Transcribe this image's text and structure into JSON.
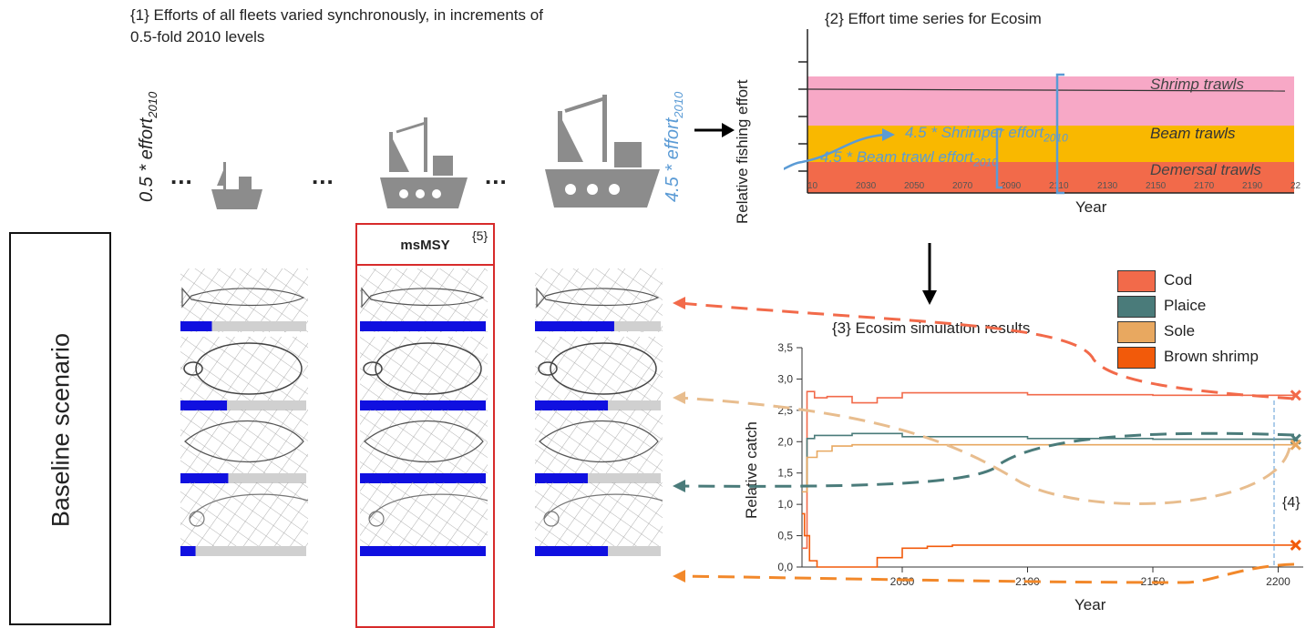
{
  "panel1": {
    "title_line1": "{1} Efforts of all fleets varied synchronously, in increments of",
    "title_line2": "0.5-fold 2010 levels",
    "left_effort_prefix": "0.5 * effort",
    "left_effort_sub": "2010",
    "right_effort_prefix": "4.5 * effort",
    "right_effort_sub": "2010",
    "ellipsis": "..."
  },
  "side_label": "Baseline scenario",
  "msmsy": {
    "label": "msMSY",
    "note": "{5}"
  },
  "panel2": {
    "title": "{2} Effort time series for Ecosim",
    "ylabel": "Relative fishing effort",
    "xlabel": "Year",
    "x_ticks": [
      "10",
      "2030",
      "2050",
      "2070",
      "2090",
      "2110",
      "2130",
      "2150",
      "2170",
      "2190",
      "22"
    ],
    "bands": [
      {
        "label": "Shrimp trawls",
        "color": "#f7a8c6"
      },
      {
        "label": "Beam trawls",
        "color": "#f9b800"
      },
      {
        "label": "Demersal trawls",
        "color": "#f26a4a"
      }
    ],
    "ann_shrimper": "4.5 * Shrimper effort",
    "ann_shrimper_sub": "2010",
    "ann_beam": "4.5 * Beam trawl effort",
    "ann_beam_sub": "2010"
  },
  "panel3": {
    "title": "{3} Ecosim simulation results",
    "note4": "{4}",
    "legend": [
      {
        "label": "Cod",
        "color": "#f26a4a"
      },
      {
        "label": "Plaice",
        "color": "#4a7b7a"
      },
      {
        "label": "Sole",
        "color": "#e8a860"
      },
      {
        "label": "Brown shrimp",
        "color": "#f25a0a"
      }
    ]
  },
  "fish_bars": {
    "color_fill": "#1010e0",
    "color_track": "#d0d0d0",
    "columns": [
      [
        0.25,
        0.37,
        0.38,
        0.12
      ],
      [
        1.0,
        1.0,
        1.0,
        1.0
      ],
      [
        0.63,
        0.58,
        0.42,
        0.58
      ]
    ]
  },
  "chart_data": {
    "type": "line",
    "title": "{3} Ecosim simulation results",
    "xlabel": "Year",
    "ylabel": "Relative catch",
    "xlim": [
      2010,
      2210
    ],
    "ylim": [
      0,
      3.5
    ],
    "x_ticks": [
      2050,
      2100,
      2150,
      2200
    ],
    "y_ticks": [
      "0,0",
      "0,5",
      "1,0",
      "1,5",
      "2,0",
      "2,5",
      "3,0",
      "3,5"
    ],
    "series": [
      {
        "name": "Cod",
        "color": "#f26a4a",
        "x": [
          2010,
          2012,
          2015,
          2020,
          2030,
          2040,
          2050,
          2100,
          2150,
          2207
        ],
        "y": [
          0.3,
          2.8,
          2.7,
          2.72,
          2.62,
          2.7,
          2.78,
          2.75,
          2.74,
          2.74
        ]
      },
      {
        "name": "Plaice",
        "color": "#4a7b7a",
        "x": [
          2010,
          2012,
          2015,
          2020,
          2030,
          2050,
          2100,
          2150,
          2207
        ],
        "y": [
          1.3,
          2.05,
          2.1,
          2.1,
          2.13,
          2.08,
          2.05,
          2.04,
          2.04
        ]
      },
      {
        "name": "Sole",
        "color": "#e8a860",
        "x": [
          2010,
          2012,
          2016,
          2022,
          2030,
          2050,
          2100,
          2150,
          2207
        ],
        "y": [
          1.2,
          1.75,
          1.85,
          1.93,
          1.95,
          1.95,
          1.95,
          1.95,
          1.95
        ]
      },
      {
        "name": "Brown shrimp",
        "color": "#f25a0a",
        "x": [
          2010,
          2011,
          2013,
          2016,
          2030,
          2040,
          2050,
          2060,
          2070,
          2100,
          2150,
          2207
        ],
        "y": [
          0.85,
          0.5,
          0.1,
          0.0,
          0.0,
          0.15,
          0.3,
          0.33,
          0.35,
          0.35,
          0.35,
          0.35
        ]
      }
    ]
  }
}
